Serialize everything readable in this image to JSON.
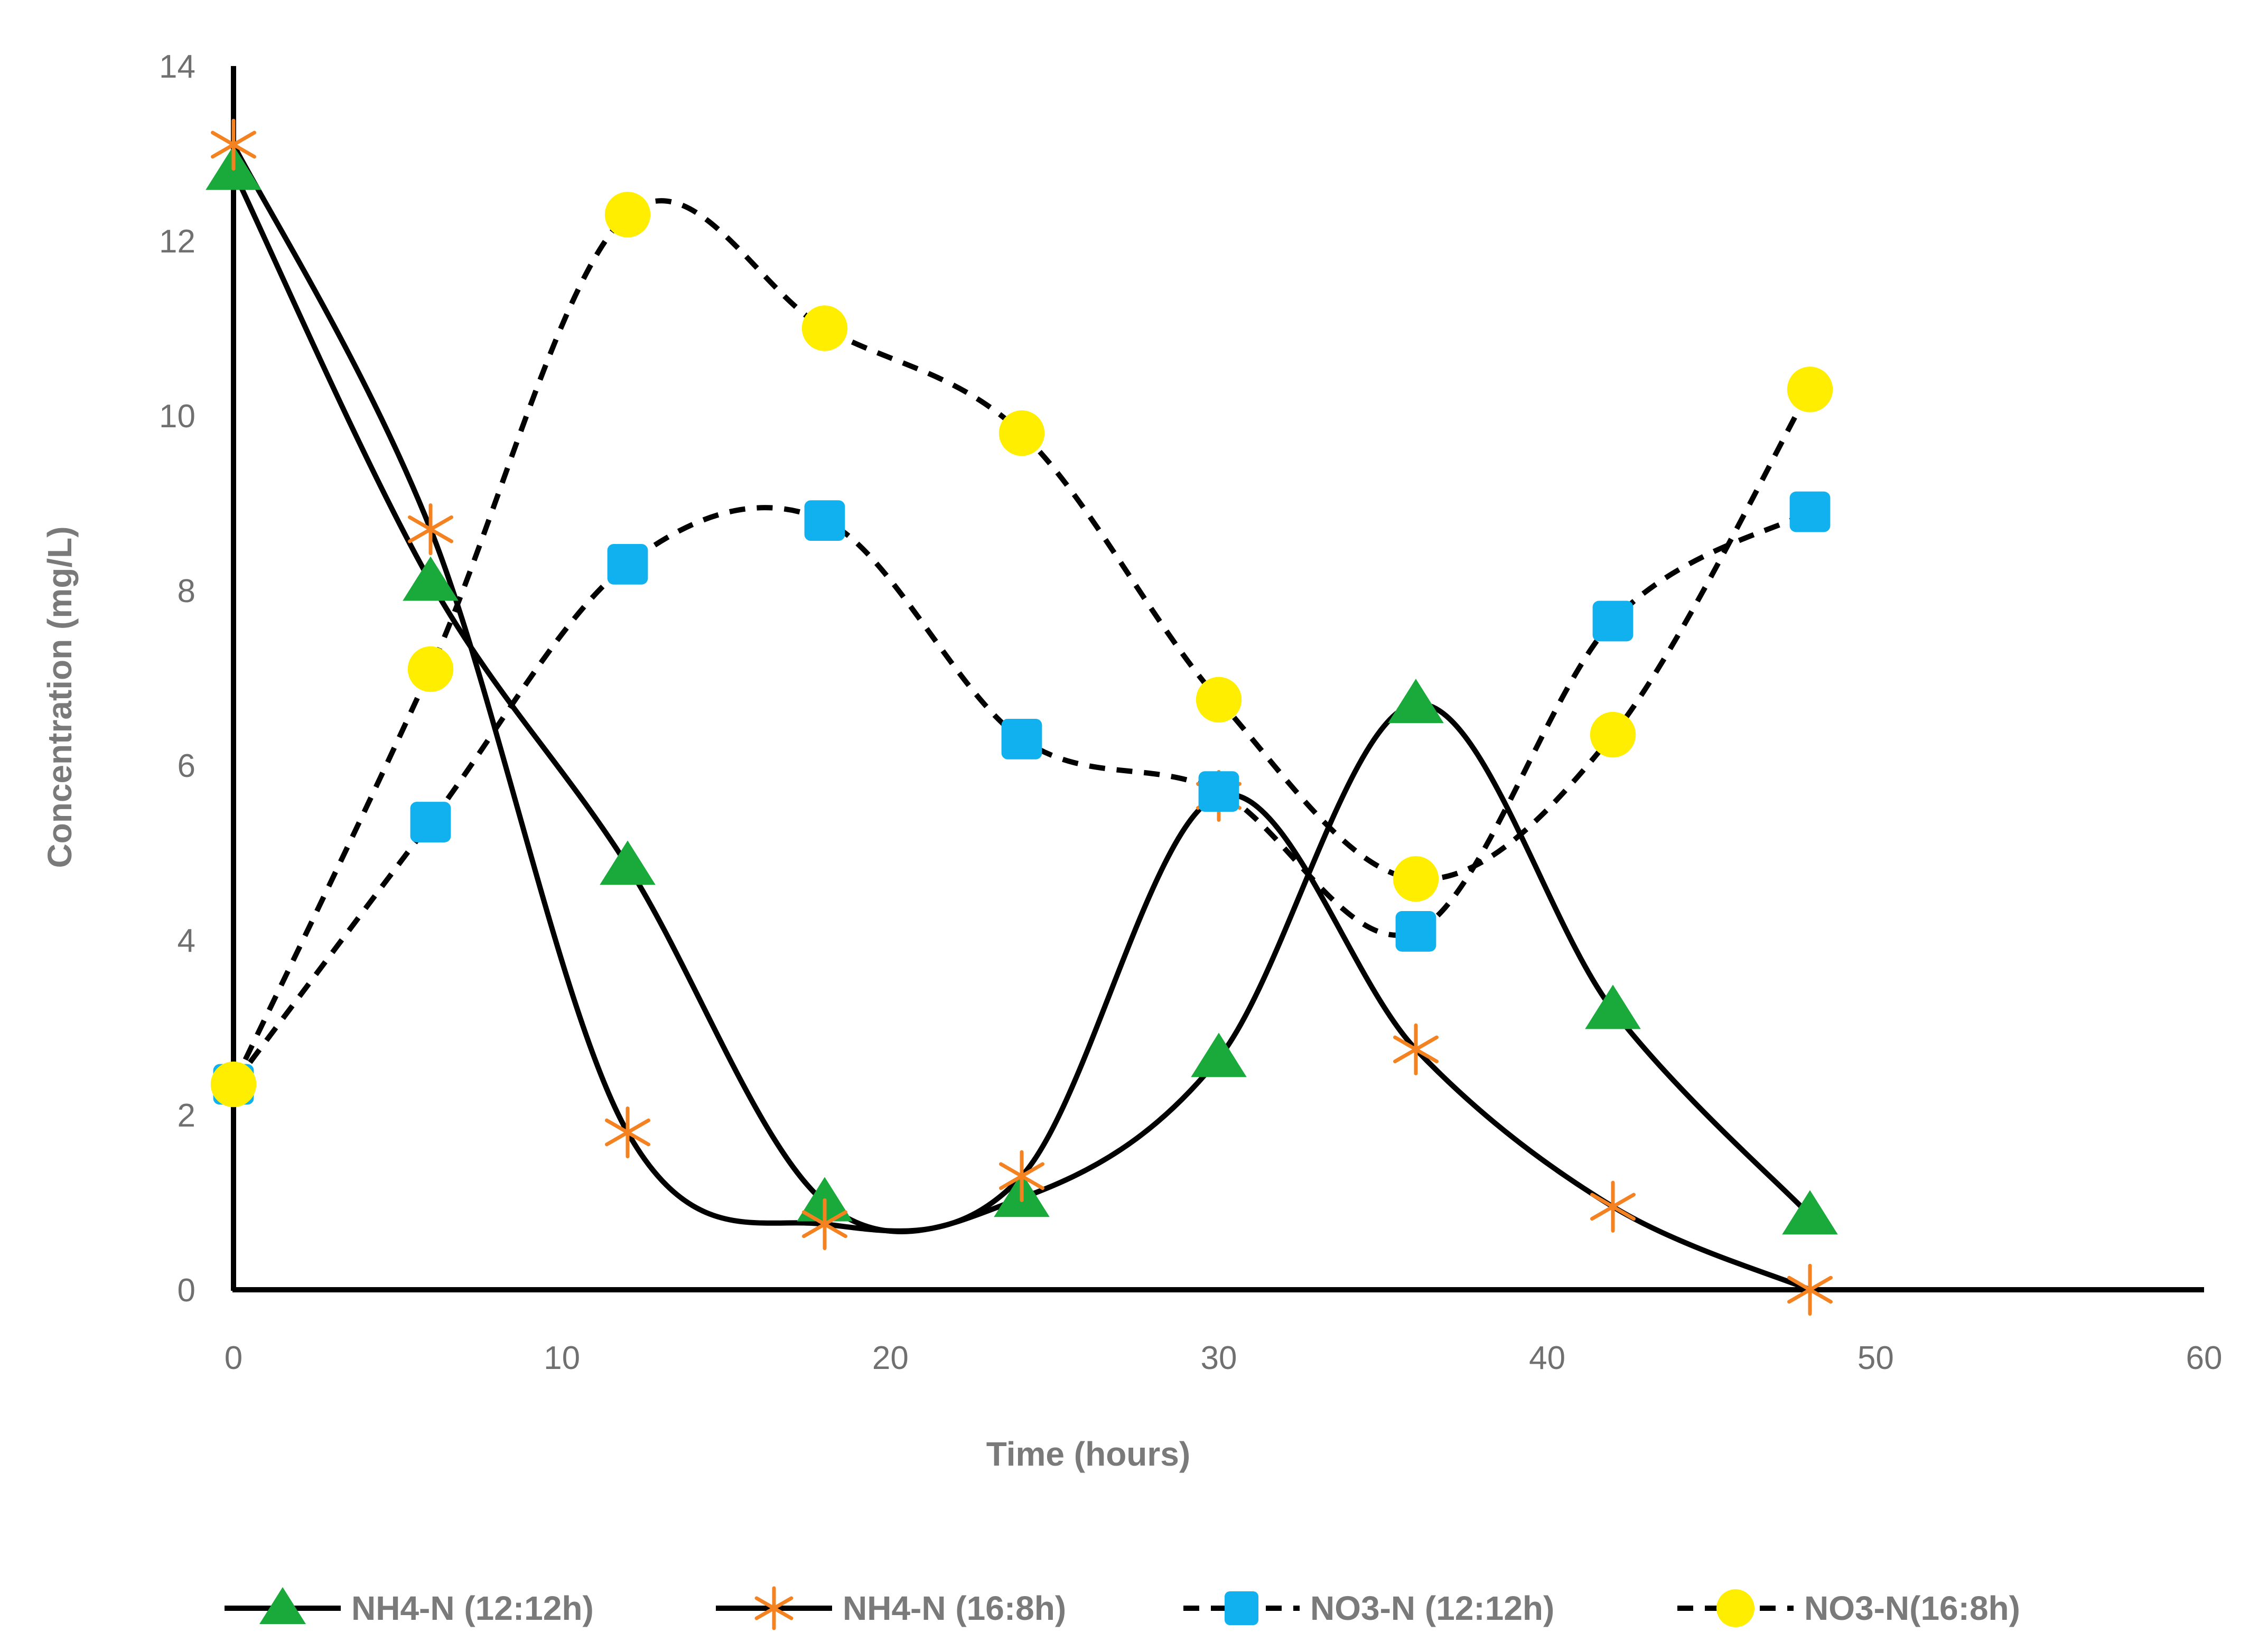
{
  "chart_data": {
    "type": "line",
    "title": "",
    "xlabel": "Time (hours)",
    "ylabel": "Concentration (mg/L)",
    "xlim": [
      0,
      60
    ],
    "ylim": [
      0,
      14
    ],
    "x_ticks": [
      "0",
      "10",
      "20",
      "30",
      "40",
      "50",
      "60"
    ],
    "y_ticks": [
      "0",
      "2",
      "4",
      "6",
      "8",
      "10",
      "12",
      "14"
    ],
    "grid": false,
    "legend_position": "bottom",
    "x": [
      0,
      6,
      12,
      18,
      24,
      30,
      36,
      42,
      48
    ],
    "series": [
      {
        "name": "NH4-N (12:12h)",
        "values": [
          12.8,
          8.1,
          4.85,
          1.0,
          1.05,
          2.65,
          6.7,
          3.2,
          0.85
        ],
        "marker": "triangle",
        "marker_color": "#1aaa3c",
        "line_style": "solid"
      },
      {
        "name": "NH4-N (16:8h)",
        "values": [
          13.1,
          8.7,
          1.8,
          0.75,
          1.3,
          5.65,
          2.75,
          0.95,
          0.0
        ],
        "marker": "asterisk",
        "marker_color": "#f58220",
        "line_style": "solid"
      },
      {
        "name": "NO3-N (12:12h)",
        "values": [
          2.35,
          5.35,
          8.3,
          8.8,
          6.3,
          5.7,
          4.1,
          7.65,
          8.9
        ],
        "marker": "square",
        "marker_color": "#11b0ee",
        "line_style": "dashed"
      },
      {
        "name": "NO3-N(16:8h)",
        "values": [
          2.35,
          7.1,
          12.3,
          11.0,
          9.8,
          6.75,
          4.7,
          6.35,
          10.3
        ],
        "marker": "circle",
        "marker_color": "#ffee00",
        "line_style": "dashed"
      }
    ]
  }
}
